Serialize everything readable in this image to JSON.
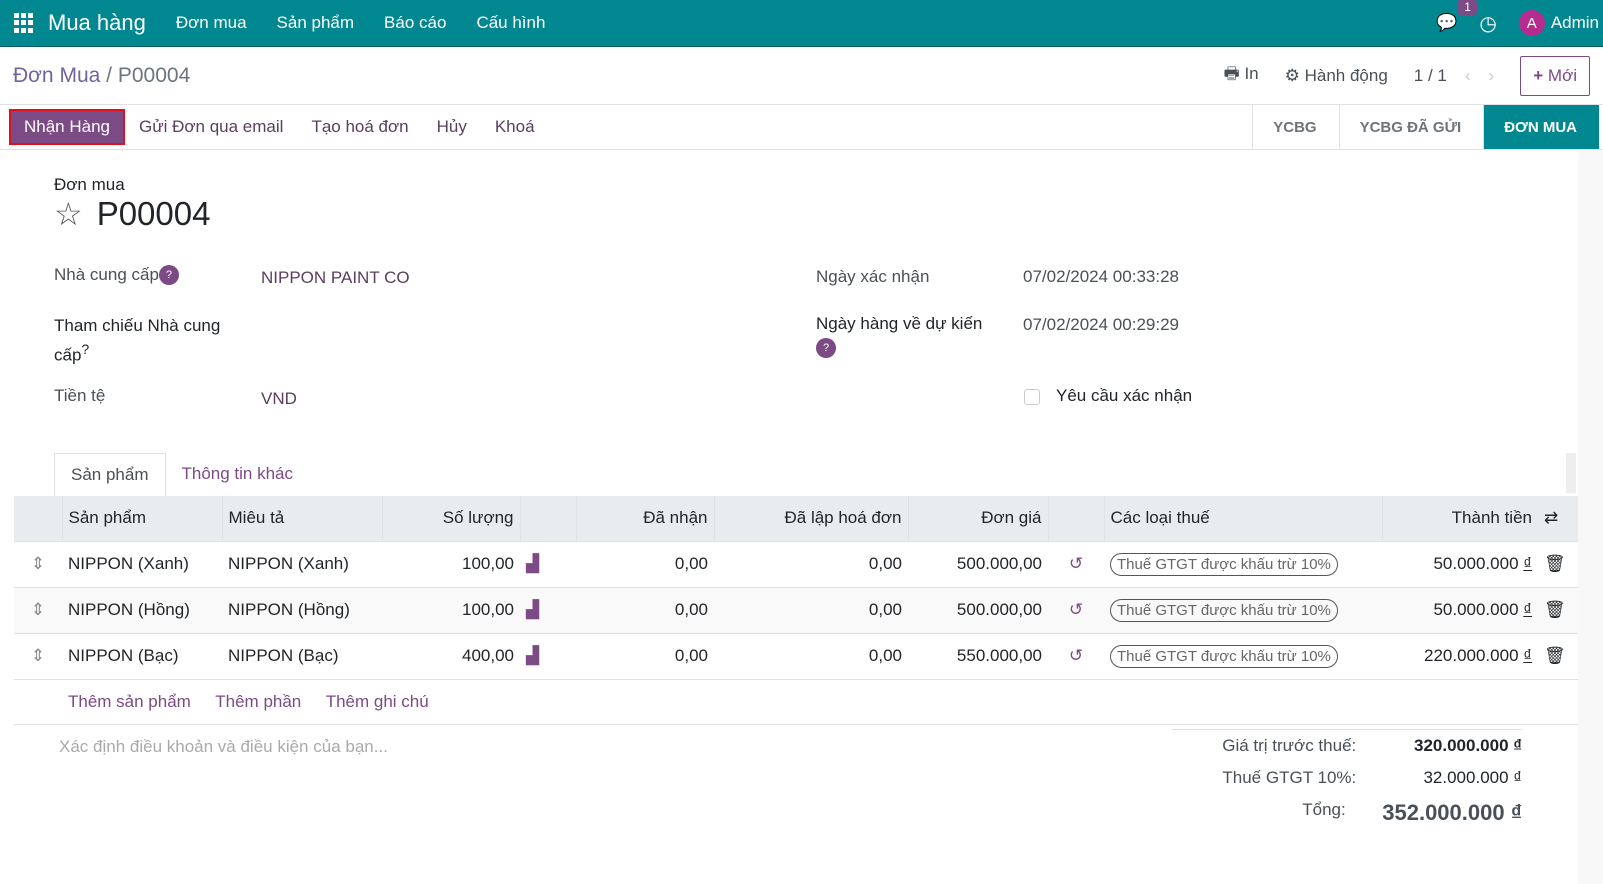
{
  "topbar": {
    "app": "Mua hàng",
    "menus": [
      "Đơn mua",
      "Sản phẩm",
      "Báo cáo",
      "Cấu hình"
    ],
    "chat_badge": "1",
    "avatar_letter": "A",
    "user": "Admin"
  },
  "control": {
    "breadcrumb_parent": "Đơn Mua",
    "breadcrumb_sep": "/",
    "breadcrumb_current": "P00004",
    "print": "In",
    "action": "Hành động",
    "pager": "1 / 1",
    "new": "Mới"
  },
  "statusbar": {
    "actions": [
      "Nhận Hàng",
      "Gửi Đơn qua email",
      "Tạo hoá đơn",
      "Hủy",
      "Khoá"
    ],
    "stages": [
      "YCBG",
      "YCBG ĐÃ GỬI",
      "ĐƠN MUA"
    ],
    "active_stage": "ĐƠN MUA"
  },
  "form": {
    "subtitle": "Đơn mua",
    "name": "P00004",
    "vendor_label": "Nhà cung cấp",
    "vendor": "NIPPON PAINT CO",
    "ref_label": "Tham chiếu Nhà cung cấp",
    "ref_q": "?",
    "currency_label": "Tiền tệ",
    "currency": "VND",
    "confirm_date_label": "Ngày xác nhận",
    "confirm_date": "07/02/2024 00:33:28",
    "expected_label": "Ngày hàng về dự kiến",
    "expected": "07/02/2024 00:29:29",
    "ack_label": "Yêu cầu xác nhận",
    "ack_checked": false,
    "q": "?"
  },
  "tabs": [
    "Sản phẩm",
    "Thông tin khác"
  ],
  "table": {
    "headers": [
      "Sản phẩm",
      "Miêu tả",
      "Số lượng",
      "",
      "Đã nhận",
      "Đã lập hoá đơn",
      "Đơn giá",
      "",
      "Các loại thuế",
      "Thành tiền"
    ],
    "rows": [
      {
        "product": "NIPPON (Xanh)",
        "desc": "NIPPON (Xanh)",
        "qty": "100,00",
        "received": "0,00",
        "invoiced": "0,00",
        "price": "500.000,00",
        "tax": "Thuế GTGT được khấu trừ 10%",
        "subtotal": "50.000.000",
        "cur": "₫"
      },
      {
        "product": "NIPPON (Hồng)",
        "desc": "NIPPON (Hồng)",
        "qty": "100,00",
        "received": "0,00",
        "invoiced": "0,00",
        "price": "500.000,00",
        "tax": "Thuế GTGT được khấu trừ 10%",
        "subtotal": "50.000.000",
        "cur": "₫"
      },
      {
        "product": "NIPPON (Bạc)",
        "desc": "NIPPON (Bạc)",
        "qty": "400,00",
        "received": "0,00",
        "invoiced": "0,00",
        "price": "550.000,00",
        "tax": "Thuế GTGT được khấu trừ 10%",
        "subtotal": "220.000.000",
        "cur": "₫"
      }
    ],
    "add": [
      "Thêm sản phẩm",
      "Thêm phần",
      "Thêm ghi chú"
    ]
  },
  "terms_placeholder": "Xác định điều khoản và điều kiện của bạn...",
  "totals": {
    "untaxed_label": "Giá trị trước thuế:",
    "untaxed": "320.000.000 ₫",
    "tax_label": "Thuế GTGT 10%:",
    "tax": "32.000.000 ₫",
    "total_label": "Tổng:",
    "total": "352.000.000 ₫"
  },
  "colors": {
    "topbar": "#00878f",
    "primary": "#7c4a85",
    "highlight": "#e0101a"
  }
}
